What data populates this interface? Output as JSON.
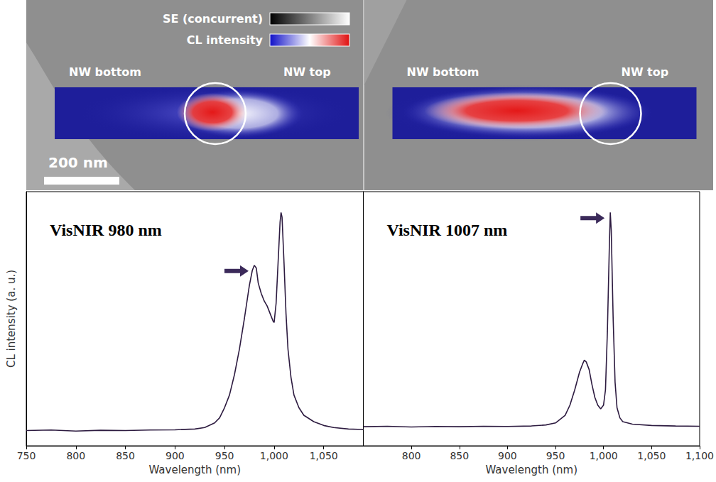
{
  "chart_data": [
    {
      "type": "line",
      "annotation": "VisNIR 980 nm",
      "arrow": {
        "x": 980,
        "y": 0.71
      },
      "xlabel": "Wavelength (nm)",
      "ylabel": "CL intensity (a. u.)",
      "xlim": [
        750,
        1090
      ],
      "xticks": [
        750,
        800,
        850,
        900,
        950,
        1000,
        1050
      ],
      "ylim": [
        0,
        1
      ],
      "tick_labels": "x",
      "grid": false,
      "color": "#2d1b40",
      "x": [
        750,
        775,
        800,
        825,
        850,
        875,
        900,
        920,
        930,
        940,
        945,
        950,
        955,
        960,
        965,
        970,
        975,
        978,
        980,
        982,
        984,
        987,
        990,
        993,
        996,
        999,
        1000,
        1002,
        1004,
        1006,
        1007,
        1008,
        1010,
        1012,
        1014,
        1017,
        1020,
        1025,
        1030,
        1040,
        1050,
        1060,
        1075,
        1090
      ],
      "values": [
        0.06,
        0.062,
        0.058,
        0.061,
        0.06,
        0.062,
        0.063,
        0.066,
        0.072,
        0.09,
        0.11,
        0.15,
        0.2,
        0.28,
        0.38,
        0.5,
        0.63,
        0.69,
        0.71,
        0.7,
        0.64,
        0.6,
        0.57,
        0.55,
        0.52,
        0.49,
        0.485,
        0.56,
        0.72,
        0.88,
        0.918,
        0.9,
        0.72,
        0.52,
        0.38,
        0.27,
        0.2,
        0.15,
        0.12,
        0.095,
        0.08,
        0.072,
        0.066,
        0.064
      ]
    },
    {
      "type": "line",
      "annotation": "VisNIR 1007 nm",
      "arrow": {
        "x": 1007,
        "y": 0.918
      },
      "xlabel": "Wavelength (nm)",
      "xlim": [
        750,
        1100
      ],
      "xticks": [
        800,
        850,
        900,
        950,
        1000,
        1050,
        1100
      ],
      "ylim": [
        0,
        1
      ],
      "tick_labels": "x",
      "grid": false,
      "color": "#2d1b40",
      "x": [
        750,
        775,
        800,
        825,
        850,
        875,
        900,
        925,
        940,
        950,
        960,
        965,
        970,
        975,
        978,
        980,
        982,
        985,
        988,
        991,
        994,
        997,
        1000,
        1002,
        1004,
        1006,
        1007,
        1008,
        1010,
        1012,
        1014,
        1017,
        1020,
        1030,
        1050,
        1075,
        1100
      ],
      "values": [
        0.075,
        0.077,
        0.074,
        0.076,
        0.075,
        0.077,
        0.076,
        0.078,
        0.082,
        0.09,
        0.12,
        0.16,
        0.22,
        0.29,
        0.32,
        0.337,
        0.33,
        0.3,
        0.24,
        0.19,
        0.16,
        0.145,
        0.16,
        0.22,
        0.45,
        0.78,
        0.918,
        0.85,
        0.5,
        0.25,
        0.15,
        0.11,
        0.095,
        0.085,
        0.08,
        0.078,
        0.077
      ]
    }
  ],
  "images": {
    "colorbars": [
      "SE (concurrent)",
      "CL intensity"
    ],
    "panels": [
      {
        "left": "NW bottom",
        "right": "NW top"
      },
      {
        "left": "NW bottom",
        "right": "NW top"
      }
    ],
    "scale_bar": "200 nm"
  }
}
